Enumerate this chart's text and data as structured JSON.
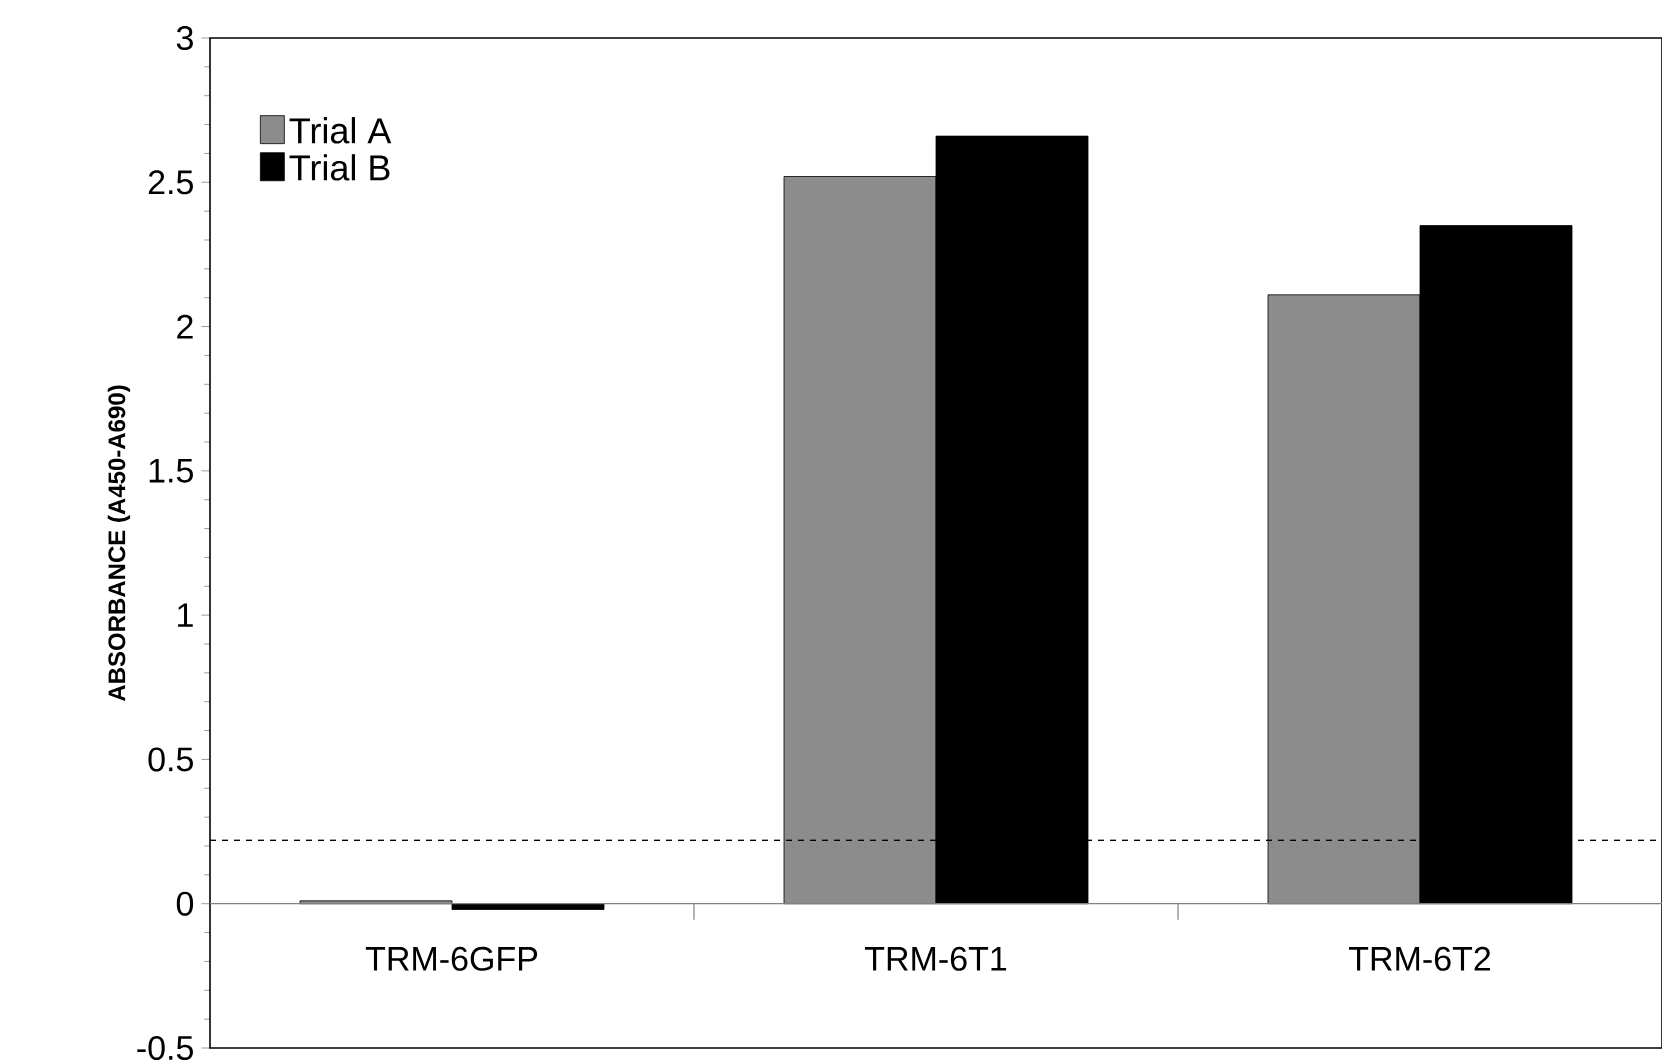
{
  "chart_data": {
    "type": "bar",
    "ylabel": "ABSORBANCE (A450-A690)",
    "categories": [
      "TRM-6GFP",
      "TRM-6T1",
      "TRM-6T2"
    ],
    "series": [
      {
        "name": "Trial A",
        "color": "#8c8c8c",
        "values": [
          0.01,
          2.52,
          2.11
        ]
      },
      {
        "name": "Trial B",
        "color": "#000000",
        "values": [
          -0.02,
          2.66,
          2.35
        ]
      }
    ],
    "ylim": [
      -0.5,
      3
    ],
    "yticks": [
      -0.5,
      0,
      0.5,
      1,
      1.5,
      2,
      2.5,
      3
    ],
    "ref_lines": [
      {
        "axis": "y",
        "value": 0.22,
        "line_style": "dashed"
      }
    ],
    "legend": "top left"
  }
}
